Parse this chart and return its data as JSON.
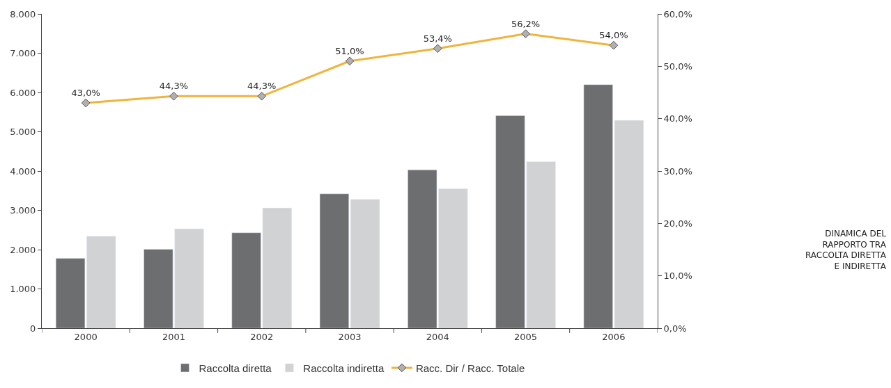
{
  "chart_data": {
    "type": "bar",
    "categories": [
      "2000",
      "2001",
      "2002",
      "2003",
      "2004",
      "2005",
      "2006"
    ],
    "series": [
      {
        "name": "Raccolta diretta",
        "color": "#6d6e70",
        "values": [
          1780,
          2010,
          2430,
          3420,
          4030,
          5410,
          6200
        ]
      },
      {
        "name": "Raccolta indiretta",
        "color": "#d1d2d4",
        "values": [
          2340,
          2530,
          3060,
          3280,
          3550,
          4240,
          5290
        ]
      },
      {
        "name": "Racc. Dir / Racc. Totale",
        "type": "line",
        "axis": "y2",
        "color": "#f0b43c",
        "marker": "diamond",
        "values": [
          43.0,
          44.3,
          44.3,
          51.0,
          53.4,
          56.2,
          54.0
        ],
        "value_labels": [
          "43,0%",
          "44,3%",
          "44,3%",
          "51,0%",
          "53,4%",
          "56,2%",
          "54,0%"
        ]
      }
    ],
    "ylim": [
      0,
      8000
    ],
    "yticks": [
      {
        "value": 0,
        "label": "0"
      },
      {
        "value": 1000,
        "label": "1.000"
      },
      {
        "value": 2000,
        "label": "2.000"
      },
      {
        "value": 3000,
        "label": "3.000"
      },
      {
        "value": 4000,
        "label": "4.000"
      },
      {
        "value": 5000,
        "label": "5.000"
      },
      {
        "value": 6000,
        "label": "6.000"
      },
      {
        "value": 7000,
        "label": "7.000"
      },
      {
        "value": 8000,
        "label": "8.000"
      }
    ],
    "y2lim": [
      0,
      60
    ],
    "y2ticks": [
      {
        "value": 0,
        "label": "0,0%"
      },
      {
        "value": 10,
        "label": "10,0%"
      },
      {
        "value": 20,
        "label": "20,0%"
      },
      {
        "value": 30,
        "label": "30,0%"
      },
      {
        "value": 40,
        "label": "40,0%"
      },
      {
        "value": 50,
        "label": "50,0%"
      },
      {
        "value": 60,
        "label": "60,0%"
      }
    ],
    "annotations": [
      "DINAMICA DEL\nRAPPORTO TRA\nRACCOLTA DIRETTA\nE INDIRETTA"
    ],
    "legend": "bottom"
  }
}
